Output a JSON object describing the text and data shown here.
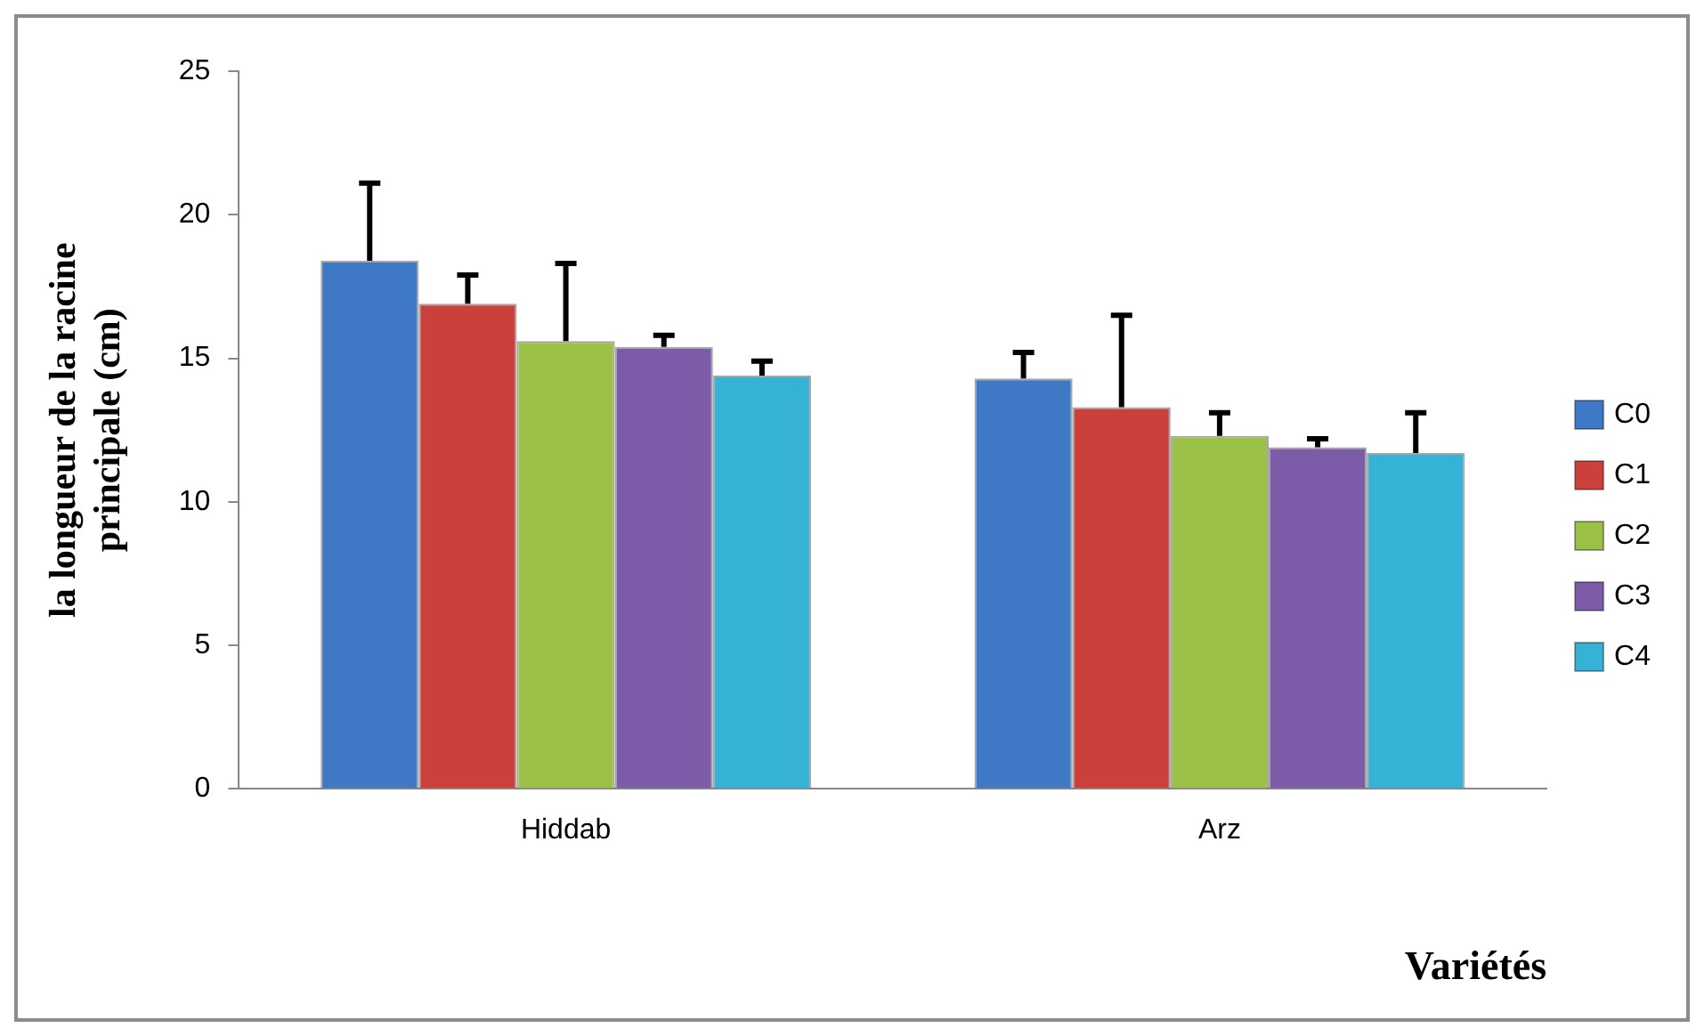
{
  "chart_data": {
    "type": "bar",
    "categories": [
      "Hiddab",
      "Arz"
    ],
    "series": [
      {
        "name": "C0",
        "color": "#3f78c4",
        "values": [
          18.4,
          14.3
        ],
        "errors": [
          [
            18.4,
            21.1
          ],
          [
            14.3,
            15.2
          ]
        ]
      },
      {
        "name": "C1",
        "color": "#cc403c",
        "values": [
          16.9,
          13.3
        ],
        "errors": [
          [
            16.9,
            17.9
          ],
          [
            13.3,
            16.5
          ]
        ]
      },
      {
        "name": "C2",
        "color": "#9bc146",
        "values": [
          15.6,
          12.3
        ],
        "errors": [
          [
            15.6,
            18.3
          ],
          [
            12.3,
            13.1
          ]
        ]
      },
      {
        "name": "C3",
        "color": "#7c5ba8",
        "values": [
          15.4,
          11.9
        ],
        "errors": [
          [
            15.4,
            15.8
          ],
          [
            11.9,
            12.2
          ]
        ]
      },
      {
        "name": "C4",
        "color": "#36b2d6",
        "values": [
          14.4,
          11.7
        ],
        "errors": [
          [
            14.4,
            14.9
          ],
          [
            11.7,
            13.1
          ]
        ]
      }
    ],
    "ylabel": "la longueur de la racine principale (cm)",
    "xlabel": "Variétés",
    "ylim": [
      0,
      25
    ],
    "yticks": [
      0,
      5,
      10,
      15,
      20,
      25
    ],
    "grid": false,
    "legend": "right"
  }
}
